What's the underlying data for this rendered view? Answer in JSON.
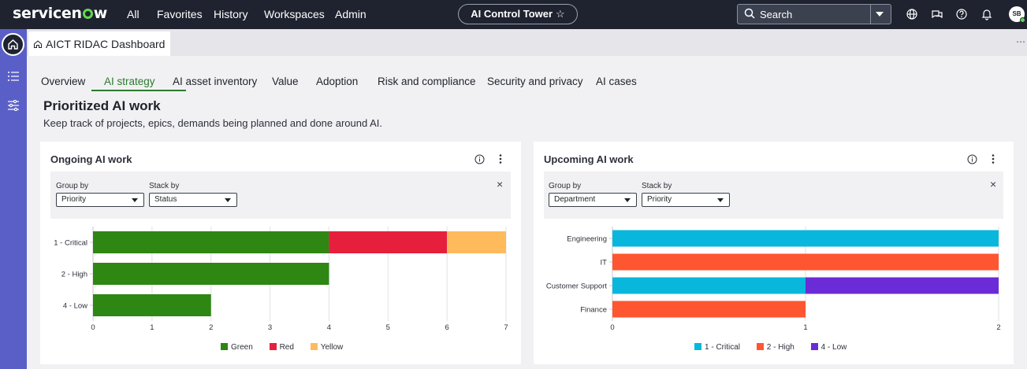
{
  "nav": {
    "logo": "servicenow",
    "items": [
      "All",
      "Favorites",
      "History",
      "Workspaces",
      "Admin"
    ],
    "app_pill": "AI Control Tower",
    "search_label": "Search",
    "avatar": "SB"
  },
  "page_tab": "AICT RIDAC Dashboard",
  "tabs": [
    "Overview",
    "AI strategy",
    "AI asset inventory",
    "Value",
    "Adoption",
    "Risk and compliance",
    "Security and privacy",
    "AI cases"
  ],
  "active_tab": "AI strategy",
  "section": {
    "title": "Prioritized AI work",
    "subtitle": "Keep track of projects, epics, demands being planned and done around AI."
  },
  "colors": {
    "green": "#2e8613",
    "red": "#e61f3d",
    "yellow": "#ffba5c",
    "critical": "#0ab7dc",
    "high": "#fe5630",
    "low": "#6b2bd7"
  },
  "cards": [
    {
      "title": "Ongoing AI work",
      "group_by_label": "Group by",
      "group_by_value": "Priority",
      "stack_by_label": "Stack by",
      "stack_by_value": "Status"
    },
    {
      "title": "Upcoming AI work",
      "group_by_label": "Group by",
      "group_by_value": "Department",
      "stack_by_label": "Stack by",
      "stack_by_value": "Priority"
    }
  ],
  "chart_data": [
    {
      "type": "bar",
      "orientation": "horizontal",
      "stacked": true,
      "categories": [
        "1 - Critical",
        "2 - High",
        "4 - Low"
      ],
      "series": [
        {
          "name": "Green",
          "values": [
            4,
            4,
            2
          ]
        },
        {
          "name": "Red",
          "values": [
            2,
            0,
            0
          ]
        },
        {
          "name": "Yellow",
          "values": [
            1,
            0,
            0
          ]
        }
      ],
      "xlim": [
        0,
        7
      ],
      "xticks": [
        "0",
        "1",
        "2",
        "3",
        "4",
        "5",
        "6",
        "7"
      ],
      "grid": true,
      "legend": "bottom-center"
    },
    {
      "type": "bar",
      "orientation": "horizontal",
      "stacked": true,
      "categories": [
        "Engineering",
        "IT",
        "Customer Support",
        "Finance"
      ],
      "series": [
        {
          "name": "1 - Critical",
          "values": [
            2,
            0,
            1,
            0
          ]
        },
        {
          "name": "2 - High",
          "values": [
            0,
            2,
            0,
            1
          ]
        },
        {
          "name": "4 - Low",
          "values": [
            0,
            0,
            1,
            0
          ]
        }
      ],
      "xlim": [
        0,
        2
      ],
      "xticks": [
        "0",
        "1",
        "2"
      ],
      "grid": true,
      "legend": "bottom-center"
    }
  ]
}
